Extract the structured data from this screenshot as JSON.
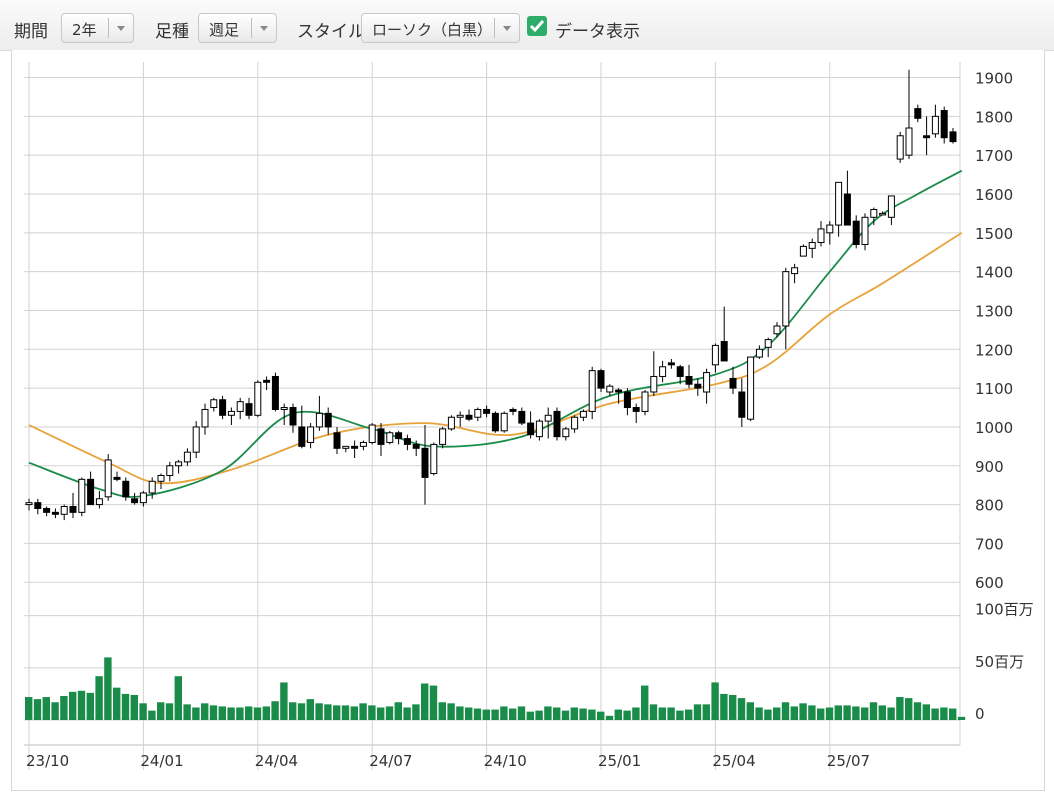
{
  "toolbar": {
    "period_label": "期間",
    "period_value": "2年",
    "foot_label": "足種",
    "foot_value": "週足",
    "style_label": "スタイル",
    "style_value": "ローソク（白黒）",
    "data_display_label": "データ表示",
    "data_display_checked": true
  },
  "chart_data": {
    "type": "candlestick",
    "price_axis": {
      "ticks": [
        "1900",
        "1800",
        "1700",
        "1600",
        "1500",
        "1400",
        "1300",
        "1200",
        "1100",
        "1000",
        "900",
        "800",
        "700",
        "600"
      ],
      "ylim": [
        580,
        1940
      ]
    },
    "volume_axis": {
      "ticks": [
        "100百万",
        "50百万",
        "0"
      ],
      "ylim": [
        0,
        115
      ],
      "unit": "百万"
    },
    "x_ticks": [
      "23/10",
      "24/01",
      "24/04",
      "24/07",
      "24/10",
      "25/01",
      "25/04",
      "25/07"
    ],
    "x_tick_index": [
      0,
      13,
      26,
      39,
      52,
      65,
      78,
      91
    ],
    "colors": {
      "ma_short": "#1a8c4a",
      "ma_long": "#e8a23a",
      "volume": "#1a8c4a",
      "candle": "#000000",
      "grid": "#d2d2d2"
    },
    "ohlc": [
      [
        800,
        815,
        785,
        805
      ],
      [
        805,
        815,
        775,
        790
      ],
      [
        790,
        795,
        770,
        780
      ],
      [
        780,
        790,
        765,
        775
      ],
      [
        775,
        800,
        760,
        795
      ],
      [
        795,
        830,
        765,
        780
      ],
      [
        780,
        870,
        770,
        865
      ],
      [
        865,
        885,
        800,
        800
      ],
      [
        800,
        835,
        790,
        815
      ],
      [
        820,
        930,
        810,
        915
      ],
      [
        870,
        885,
        860,
        865
      ],
      [
        860,
        870,
        810,
        820
      ],
      [
        815,
        830,
        800,
        805
      ],
      [
        805,
        835,
        795,
        830
      ],
      [
        830,
        870,
        815,
        860
      ],
      [
        860,
        880,
        840,
        875
      ],
      [
        875,
        910,
        860,
        900
      ],
      [
        900,
        915,
        880,
        910
      ],
      [
        910,
        945,
        900,
        935
      ],
      [
        935,
        1015,
        920,
        1000
      ],
      [
        1000,
        1060,
        980,
        1045
      ],
      [
        1050,
        1075,
        1040,
        1070
      ],
      [
        1070,
        1080,
        1020,
        1030
      ],
      [
        1030,
        1050,
        1005,
        1040
      ],
      [
        1040,
        1075,
        1020,
        1065
      ],
      [
        1060,
        1075,
        1020,
        1030
      ],
      [
        1030,
        1120,
        1025,
        1115
      ],
      [
        1120,
        1130,
        1095,
        1115
      ],
      [
        1130,
        1140,
        1040,
        1045
      ],
      [
        1045,
        1060,
        1005,
        1050
      ],
      [
        1050,
        1060,
        985,
        1005
      ],
      [
        1000,
        1055,
        945,
        950
      ],
      [
        960,
        1010,
        945,
        1000
      ],
      [
        1000,
        1080,
        990,
        1035
      ],
      [
        1035,
        1050,
        980,
        1000
      ],
      [
        985,
        1000,
        930,
        945
      ],
      [
        945,
        950,
        935,
        950
      ],
      [
        950,
        965,
        920,
        945
      ],
      [
        950,
        965,
        940,
        960
      ],
      [
        960,
        1010,
        955,
        1005
      ],
      [
        995,
        1010,
        925,
        955
      ],
      [
        960,
        990,
        955,
        985
      ],
      [
        985,
        990,
        955,
        970
      ],
      [
        970,
        980,
        940,
        955
      ],
      [
        955,
        965,
        925,
        945
      ],
      [
        945,
        1005,
        800,
        870
      ],
      [
        880,
        960,
        875,
        955
      ],
      [
        955,
        1000,
        945,
        995
      ],
      [
        995,
        1030,
        990,
        1025
      ],
      [
        1025,
        1040,
        1000,
        1030
      ],
      [
        1030,
        1045,
        1015,
        1020
      ],
      [
        1025,
        1050,
        1015,
        1045
      ],
      [
        1045,
        1055,
        1025,
        1035
      ],
      [
        1035,
        1040,
        985,
        990
      ],
      [
        990,
        1040,
        985,
        1035
      ],
      [
        1045,
        1050,
        1030,
        1040
      ],
      [
        1040,
        1050,
        1005,
        1010
      ],
      [
        1010,
        1040,
        970,
        980
      ],
      [
        975,
        1020,
        965,
        1015
      ],
      [
        1015,
        1050,
        970,
        1030
      ],
      [
        1040,
        1050,
        965,
        975
      ],
      [
        975,
        1000,
        965,
        995
      ],
      [
        995,
        1030,
        985,
        1025
      ],
      [
        1025,
        1045,
        1015,
        1040
      ],
      [
        1040,
        1155,
        1020,
        1145
      ],
      [
        1145,
        1150,
        1090,
        1100
      ],
      [
        1090,
        1110,
        1080,
        1105
      ],
      [
        1095,
        1100,
        1060,
        1090
      ],
      [
        1090,
        1100,
        1030,
        1050
      ],
      [
        1050,
        1060,
        1010,
        1040
      ],
      [
        1040,
        1095,
        1030,
        1090
      ],
      [
        1090,
        1195,
        1080,
        1130
      ],
      [
        1130,
        1170,
        1115,
        1155
      ],
      [
        1165,
        1175,
        1150,
        1160
      ],
      [
        1155,
        1160,
        1110,
        1130
      ],
      [
        1130,
        1160,
        1100,
        1110
      ],
      [
        1110,
        1125,
        1080,
        1100
      ],
      [
        1090,
        1150,
        1060,
        1140
      ],
      [
        1160,
        1215,
        1140,
        1210
      ],
      [
        1220,
        1310,
        1170,
        1170
      ],
      [
        1125,
        1155,
        1085,
        1100
      ],
      [
        1090,
        1125,
        1000,
        1025
      ],
      [
        1020,
        1180,
        1015,
        1180
      ],
      [
        1180,
        1210,
        1175,
        1200
      ],
      [
        1205,
        1230,
        1180,
        1225
      ],
      [
        1240,
        1270,
        1230,
        1260
      ],
      [
        1260,
        1410,
        1200,
        1400
      ],
      [
        1395,
        1420,
        1370,
        1410
      ],
      [
        1440,
        1470,
        1440,
        1465
      ],
      [
        1460,
        1485,
        1435,
        1475
      ],
      [
        1475,
        1530,
        1465,
        1510
      ],
      [
        1500,
        1530,
        1470,
        1520
      ],
      [
        1520,
        1630,
        1490,
        1630
      ],
      [
        1600,
        1660,
        1520,
        1520
      ],
      [
        1530,
        1545,
        1460,
        1470
      ],
      [
        1470,
        1550,
        1455,
        1540
      ],
      [
        1540,
        1565,
        1520,
        1560
      ],
      [
        1550,
        1555,
        1545,
        1550
      ],
      [
        1540,
        1595,
        1520,
        1595
      ],
      [
        1690,
        1760,
        1680,
        1750
      ],
      [
        1700,
        1920,
        1690,
        1770
      ],
      [
        1820,
        1830,
        1785,
        1795
      ],
      [
        1750,
        1800,
        1700,
        1745
      ],
      [
        1755,
        1830,
        1745,
        1800
      ],
      [
        1815,
        1825,
        1730,
        1745
      ],
      [
        1760,
        1770,
        1730,
        1735
      ]
    ],
    "ma_short": [
      [
        0,
        908
      ],
      [
        8,
        840
      ],
      [
        13,
        822
      ],
      [
        22,
        888
      ],
      [
        30,
        1035
      ],
      [
        39,
        995
      ],
      [
        46,
        950
      ],
      [
        56,
        975
      ],
      [
        66,
        1080
      ],
      [
        78,
        1135
      ],
      [
        84,
        1210
      ],
      [
        91,
        1400
      ],
      [
        96,
        1530
      ],
      [
        101,
        1600
      ],
      [
        106,
        1660
      ]
    ],
    "ma_long": [
      [
        0,
        1005
      ],
      [
        9,
        908
      ],
      [
        15,
        855
      ],
      [
        23,
        890
      ],
      [
        34,
        980
      ],
      [
        45,
        1010
      ],
      [
        55,
        980
      ],
      [
        66,
        1060
      ],
      [
        78,
        1110
      ],
      [
        84,
        1160
      ],
      [
        91,
        1290
      ],
      [
        97,
        1370
      ],
      [
        106,
        1500
      ]
    ],
    "volume": [
      22,
      20,
      22,
      17,
      23,
      27,
      28,
      26,
      42,
      60,
      31,
      25,
      24,
      16,
      9,
      17,
      16,
      42,
      15,
      12,
      16,
      14,
      13,
      12,
      12,
      13,
      12,
      13,
      18,
      36,
      17,
      16,
      20,
      16,
      15,
      14,
      14,
      13,
      16,
      14,
      12,
      13,
      17,
      12,
      15,
      35,
      33,
      17,
      16,
      13,
      12,
      11,
      10,
      10,
      13,
      11,
      13,
      8,
      9,
      13,
      12,
      9,
      12,
      11,
      10,
      8,
      4,
      10,
      9,
      12,
      33,
      15,
      12,
      12,
      9,
      10,
      15,
      15,
      36,
      25,
      24,
      21,
      17,
      12,
      10,
      12,
      17,
      13,
      16,
      14,
      11,
      12,
      14,
      14,
      13,
      12,
      17,
      14,
      12,
      22,
      21,
      17,
      15,
      11,
      12,
      11,
      3
    ]
  }
}
